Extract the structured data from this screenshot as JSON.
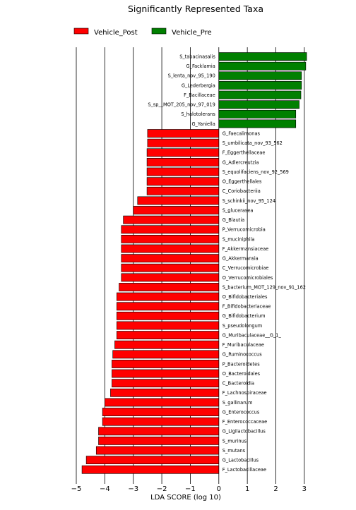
{
  "chart_data": {
    "type": "bar",
    "orientation": "horizontal",
    "title": "Significantly Represented Taxa",
    "xlabel": "LDA SCORE (log 10)",
    "ylabel": "",
    "xlim": [
      -5,
      3.4
    ],
    "xticks": [
      -5,
      -4,
      -3,
      -2,
      -1,
      0,
      1,
      2,
      3
    ],
    "xtick_labels": [
      "−5",
      "−4",
      "−3",
      "−2",
      "−1",
      "0",
      "1",
      "2",
      "3"
    ],
    "grid": "vertical gridlines at integer ticks",
    "legend_position": "top-left",
    "legend": [
      {
        "name": "Vehicle_Post",
        "color": "#ff0000"
      },
      {
        "name": "Vehicle_Pre",
        "color": "#008000"
      }
    ],
    "bars": [
      {
        "label": "S_tabacinasalis",
        "value": 3.08,
        "group": "Vehicle_Pre"
      },
      {
        "label": "G_Facklamia",
        "value": 3.05,
        "group": "Vehicle_Pre"
      },
      {
        "label": "S_lenta_nov_95_190",
        "value": 2.9,
        "group": "Vehicle_Pre"
      },
      {
        "label": "G_Lederbergia",
        "value": 2.9,
        "group": "Vehicle_Pre"
      },
      {
        "label": "F_Bacillaceae",
        "value": 2.88,
        "group": "Vehicle_Pre"
      },
      {
        "label": "S_sp__MOT_205_nov_97_019",
        "value": 2.82,
        "group": "Vehicle_Pre"
      },
      {
        "label": "S_halotolerans",
        "value": 2.7,
        "group": "Vehicle_Pre"
      },
      {
        "label": "G_Yaniella",
        "value": 2.7,
        "group": "Vehicle_Pre"
      },
      {
        "label": "G_Faecalimonas",
        "value": -2.5,
        "group": "Vehicle_Post"
      },
      {
        "label": "S_umbilicata_nov_93_562",
        "value": -2.5,
        "group": "Vehicle_Post"
      },
      {
        "label": "F_Eggerthellaceae",
        "value": -2.52,
        "group": "Vehicle_Post"
      },
      {
        "label": "G_Adlercreutzia",
        "value": -2.52,
        "group": "Vehicle_Post"
      },
      {
        "label": "S_equolifaciens_nov_92_569",
        "value": -2.52,
        "group": "Vehicle_Post"
      },
      {
        "label": "O_Eggerthellales",
        "value": -2.52,
        "group": "Vehicle_Post"
      },
      {
        "label": "C_Coriobacteriia",
        "value": -2.52,
        "group": "Vehicle_Post"
      },
      {
        "label": "S_schinkii_nov_95_124",
        "value": -2.85,
        "group": "Vehicle_Post"
      },
      {
        "label": "S_glucerasea",
        "value": -3.0,
        "group": "Vehicle_Post"
      },
      {
        "label": "G_Blautia",
        "value": -3.35,
        "group": "Vehicle_Post"
      },
      {
        "label": "P_Verrucomicrobia",
        "value": -3.42,
        "group": "Vehicle_Post"
      },
      {
        "label": "S_muciniphila",
        "value": -3.42,
        "group": "Vehicle_Post"
      },
      {
        "label": "F_Akkermansiaceae",
        "value": -3.42,
        "group": "Vehicle_Post"
      },
      {
        "label": "G_Akkermansia",
        "value": -3.42,
        "group": "Vehicle_Post"
      },
      {
        "label": "C_Verrucomicrobiae",
        "value": -3.42,
        "group": "Vehicle_Post"
      },
      {
        "label": "O_Verrucomicrobiales",
        "value": -3.42,
        "group": "Vehicle_Post"
      },
      {
        "label": "S_bacterium_MOT_129_nov_91_162",
        "value": -3.5,
        "group": "Vehicle_Post"
      },
      {
        "label": "O_Bifidobacteriales",
        "value": -3.58,
        "group": "Vehicle_Post"
      },
      {
        "label": "F_Bifidobacteriaceae",
        "value": -3.58,
        "group": "Vehicle_Post"
      },
      {
        "label": "G_Bifidobacterium",
        "value": -3.58,
        "group": "Vehicle_Post"
      },
      {
        "label": "S_pseudolongum",
        "value": -3.58,
        "group": "Vehicle_Post"
      },
      {
        "label": "G_Muribaculaceae__G_1_",
        "value": -3.58,
        "group": "Vehicle_Post"
      },
      {
        "label": "F_Muribaculaceae",
        "value": -3.65,
        "group": "Vehicle_Post"
      },
      {
        "label": "G_Ruminococcus",
        "value": -3.72,
        "group": "Vehicle_Post"
      },
      {
        "label": "P_Bacteroidetes",
        "value": -3.75,
        "group": "Vehicle_Post"
      },
      {
        "label": "O_Bacteroidales",
        "value": -3.75,
        "group": "Vehicle_Post"
      },
      {
        "label": "C_Bacteroidia",
        "value": -3.75,
        "group": "Vehicle_Post"
      },
      {
        "label": "F_Lachnospiraceae",
        "value": -3.8,
        "group": "Vehicle_Post"
      },
      {
        "label": "S_gallinarum",
        "value": -4.0,
        "group": "Vehicle_Post"
      },
      {
        "label": "G_Enterococcus",
        "value": -4.08,
        "group": "Vehicle_Post"
      },
      {
        "label": "F_Enterococcaceae",
        "value": -4.08,
        "group": "Vehicle_Post"
      },
      {
        "label": "G_Ligilactobacillus",
        "value": -4.22,
        "group": "Vehicle_Post"
      },
      {
        "label": "S_murinus",
        "value": -4.22,
        "group": "Vehicle_Post"
      },
      {
        "label": "S_mutans",
        "value": -4.3,
        "group": "Vehicle_Post"
      },
      {
        "label": "G_Lactobacillus",
        "value": -4.65,
        "group": "Vehicle_Post"
      },
      {
        "label": "F_Lactobacillaceae",
        "value": -4.8,
        "group": "Vehicle_Post"
      }
    ]
  }
}
